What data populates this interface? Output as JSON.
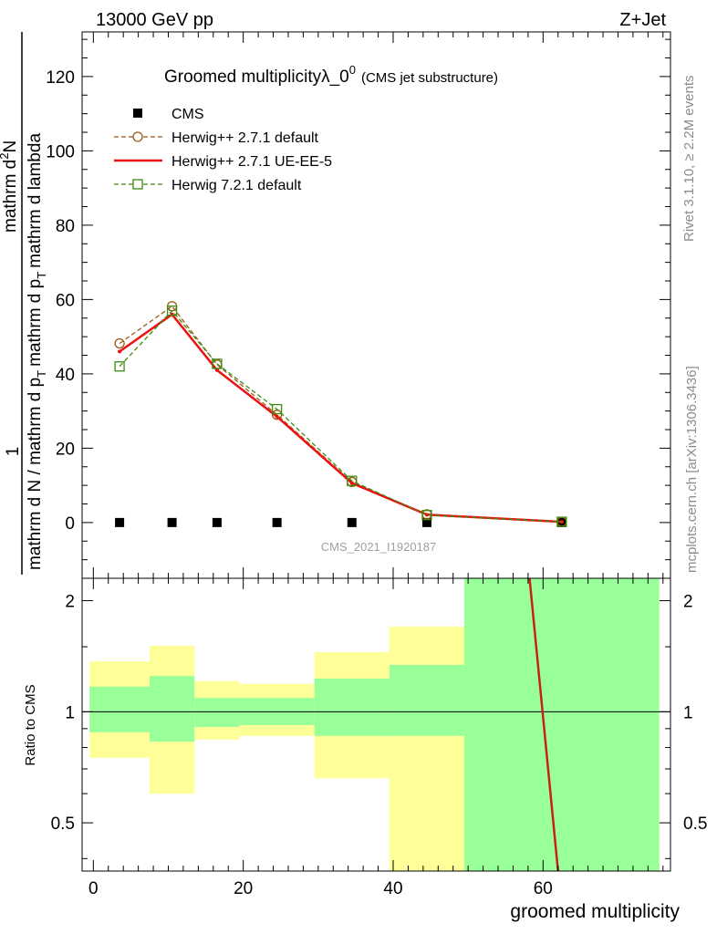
{
  "header": {
    "left": "13000 GeV pp",
    "right": "Z+Jet"
  },
  "side_labels": {
    "rivet": "Rivet 3.1.10, ≥ 2.2M events",
    "mcplots": "mcplots.cern.ch [arXiv:1306.3436]"
  },
  "watermark": "CMS_2021_I1920187",
  "chart_data": [
    {
      "type": "line",
      "title": "Groomed multiplicityλ_0",
      "title_superscript": "0",
      "subtitle": "(CMS jet substructure)",
      "ylabel_parts": [
        "1",
        "mathrm d N / mathrm d p",
        "T",
        "mathrm d p",
        "T",
        "mathrm d lambda",
        "mathrm d",
        "2",
        "N"
      ],
      "xlim": [
        -1.5,
        77
      ],
      "ylim": [
        -15,
        132
      ],
      "yticks": [
        0,
        20,
        40,
        60,
        80,
        100,
        120
      ],
      "xticks": [
        0,
        20,
        40,
        60
      ],
      "legend_position": "top-left",
      "x": [
        3.5,
        10.5,
        16.5,
        24.5,
        34.5,
        44.5,
        62.5
      ],
      "series": [
        {
          "name": "CMS",
          "style": "square-marker",
          "color": "#000000",
          "values": [
            0,
            0,
            0,
            0,
            0,
            0,
            0
          ]
        },
        {
          "name": "Herwig++ 2.7.1 default",
          "style": "dashed-circle",
          "color": "#9c5a14",
          "values": [
            48.2,
            58.2,
            42.5,
            29.0,
            10.9,
            2.2,
            0.2
          ]
        },
        {
          "name": "Herwig++ 2.7.1 UE-EE-5",
          "style": "solid",
          "color": "#ee1111",
          "values": [
            46.0,
            56.0,
            41.0,
            28.5,
            10.6,
            2.1,
            0.2
          ]
        },
        {
          "name": "Herwig 7.2.1 default",
          "style": "dashed-square",
          "color": "#3b8c0f",
          "values": [
            42.0,
            57.0,
            42.7,
            30.5,
            11.2,
            2.0,
            0.2
          ]
        }
      ]
    },
    {
      "type": "area",
      "ylabel": "Ratio to CMS",
      "xlabel": "groomed multiplicity",
      "xlim": [
        -1.5,
        77
      ],
      "ylim": [
        0.37,
        2.3
      ],
      "scale": "log",
      "yticks": [
        0.5,
        1,
        2
      ],
      "ytick_labels": [
        "0.5",
        "1",
        "2"
      ],
      "xticks": [
        0,
        20,
        40,
        60
      ],
      "reference_line": 1,
      "bins": [
        {
          "lo": -0.5,
          "hi": 7.5,
          "inner": [
            0.88,
            1.17
          ],
          "outer": [
            0.75,
            1.37
          ]
        },
        {
          "lo": 7.5,
          "hi": 13.5,
          "inner": [
            0.83,
            1.25
          ],
          "outer": [
            0.6,
            1.51
          ]
        },
        {
          "lo": 13.5,
          "hi": 19.5,
          "inner": [
            0.91,
            1.09
          ],
          "outer": [
            0.84,
            1.21
          ]
        },
        {
          "lo": 19.5,
          "hi": 29.5,
          "inner": [
            0.92,
            1.09
          ],
          "outer": [
            0.86,
            1.19
          ]
        },
        {
          "lo": 29.5,
          "hi": 39.5,
          "inner": [
            0.86,
            1.23
          ],
          "outer": [
            0.66,
            1.45
          ]
        },
        {
          "lo": 39.5,
          "hi": 49.5,
          "inner": [
            0.86,
            1.34
          ],
          "outer": [
            0.37,
            1.7
          ]
        },
        {
          "lo": 49.5,
          "hi": 75.5,
          "inner": [
            0.37,
            2.3
          ],
          "outer": [
            0.37,
            2.3
          ]
        }
      ],
      "ratio_line": {
        "x": [
          58.2,
          62.0
        ],
        "y": [
          2.3,
          0.37
        ],
        "color": "#c8201c"
      }
    }
  ]
}
